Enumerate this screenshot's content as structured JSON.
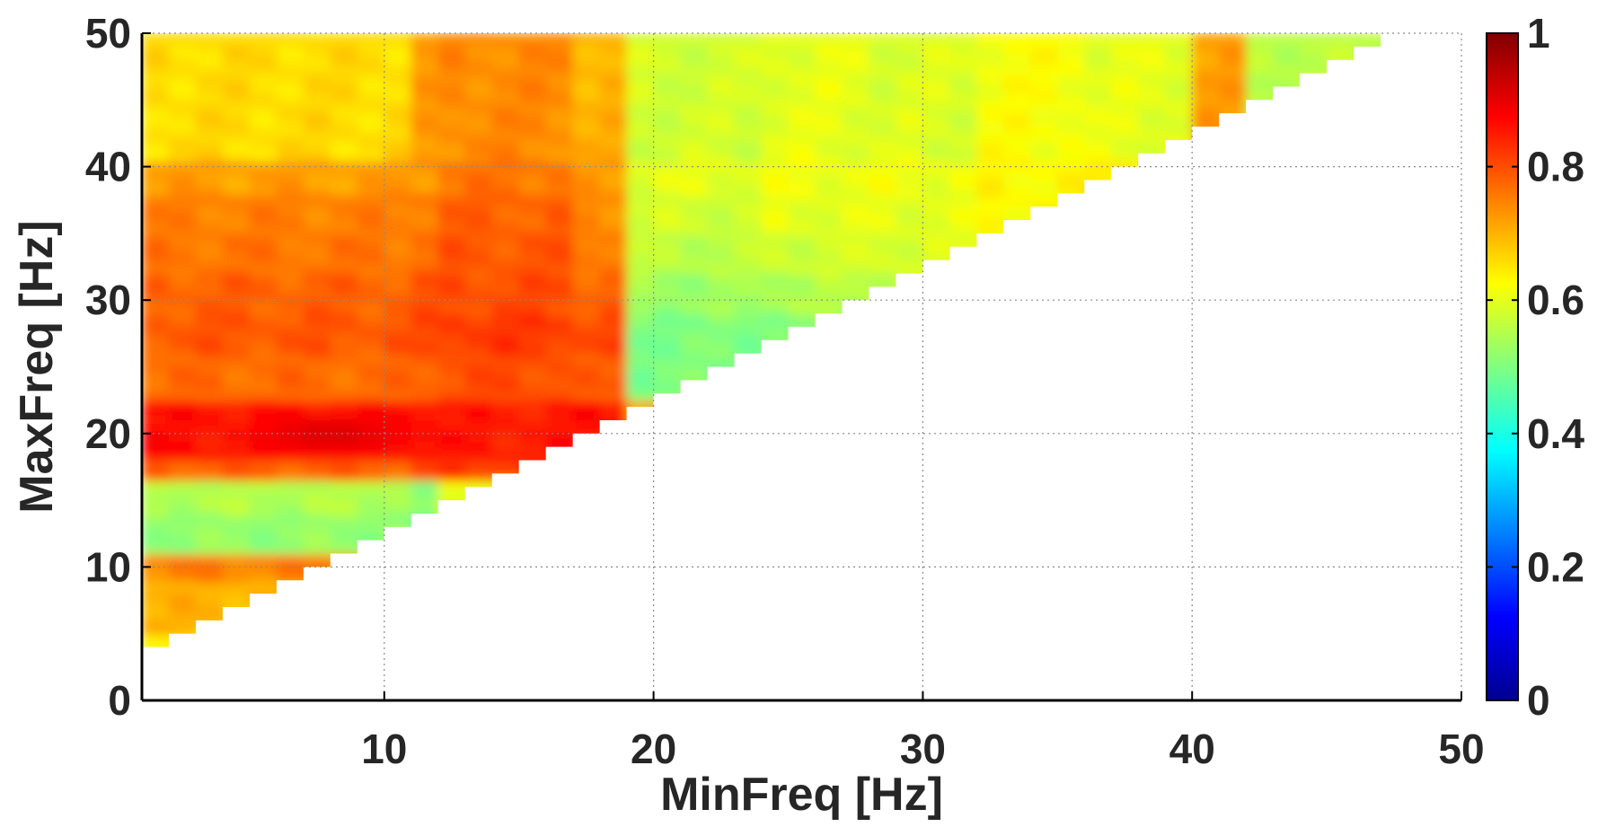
{
  "chart_data": {
    "type": "heatmap",
    "title": "",
    "xlabel": "MinFreq [Hz]",
    "ylabel": "MaxFreq [Hz]",
    "xlim": [
      1,
      50
    ],
    "ylim": [
      0,
      50
    ],
    "x_ticks": [
      "10",
      "20",
      "30",
      "40",
      "50"
    ],
    "y_ticks": [
      "0",
      "10",
      "20",
      "30",
      "40",
      "50"
    ],
    "grid": true,
    "colormap": "jet",
    "clim": [
      0,
      1
    ],
    "colorbar_ticks": [
      "0",
      "0.2",
      "0.4",
      "0.6",
      "0.8",
      "1"
    ],
    "colorbar_position": "right",
    "region": "defined only where MaxFreq > MinFreq + 2 (upper-left triangle)",
    "cell_size_hz": 1,
    "x_zones": {
      "edges": [
        1,
        11,
        12,
        17,
        19,
        24,
        28,
        32,
        36,
        40,
        42,
        50
      ],
      "values": [
        0.66,
        0.72,
        0.74,
        0.7,
        0.58,
        0.6,
        0.59,
        0.62,
        0.6,
        0.72,
        0.56
      ]
    },
    "y_bands": {
      "edges": [
        0,
        5,
        9,
        11,
        14,
        16.5,
        18,
        22.5,
        26,
        29,
        32,
        35,
        38,
        40.5,
        50
      ],
      "values_by_zone": [
        [
          0.63,
          0.64,
          0.63,
          0.62,
          0.62,
          0.6,
          0.55,
          0.55,
          0.55,
          0.55,
          0.55
        ],
        [
          0.7,
          0.7,
          0.69,
          0.68,
          0.66,
          0.63,
          0.55,
          0.55,
          0.55,
          0.55,
          0.55
        ],
        [
          0.75,
          0.74,
          0.73,
          0.72,
          0.7,
          0.66,
          0.55,
          0.55,
          0.55,
          0.55,
          0.55
        ],
        [
          0.52,
          0.47,
          0.5,
          0.55,
          0.55,
          0.55,
          0.55,
          0.55,
          0.55,
          0.55,
          0.55
        ],
        [
          0.55,
          0.5,
          0.6,
          0.58,
          0.55,
          0.55,
          0.55,
          0.55,
          0.55,
          0.55,
          0.55
        ],
        [
          0.78,
          0.8,
          0.82,
          0.82,
          0.55,
          0.55,
          0.55,
          0.55,
          0.55,
          0.55,
          0.55
        ],
        [
          0.86,
          0.87,
          0.85,
          0.86,
          0.72,
          0.55,
          0.55,
          0.55,
          0.55,
          0.55,
          0.55
        ],
        [
          0.77,
          0.78,
          0.8,
          0.78,
          0.5,
          0.49,
          0.55,
          0.55,
          0.55,
          0.55,
          0.55
        ],
        [
          0.79,
          0.8,
          0.82,
          0.8,
          0.5,
          0.51,
          0.72,
          0.55,
          0.55,
          0.55,
          0.55
        ],
        [
          0.78,
          0.79,
          0.8,
          0.78,
          0.53,
          0.55,
          0.57,
          0.6,
          0.55,
          0.55,
          0.55
        ],
        [
          0.76,
          0.77,
          0.79,
          0.76,
          0.56,
          0.58,
          0.59,
          0.62,
          0.62,
          0.55,
          0.55
        ],
        [
          0.75,
          0.76,
          0.78,
          0.74,
          0.58,
          0.6,
          0.6,
          0.63,
          0.7,
          0.55,
          0.55
        ],
        [
          0.72,
          0.73,
          0.76,
          0.72,
          0.6,
          0.61,
          0.61,
          0.63,
          0.64,
          0.65,
          0.55
        ],
        [
          0.66,
          0.67,
          0.7,
          0.69,
          0.62,
          0.61,
          0.6,
          0.62,
          0.61,
          0.72,
          0.56
        ]
      ]
    }
  }
}
